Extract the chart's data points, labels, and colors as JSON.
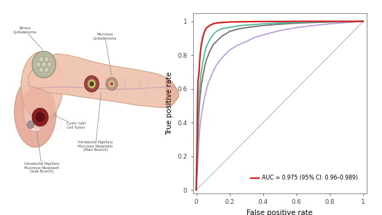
{
  "fig_width": 5.5,
  "fig_height": 3.09,
  "dpi": 100,
  "background_color": "#ffffff",
  "roc": {
    "diagonal_color": "#c0c0c0",
    "diagonal_lw": 0.9,
    "red_curve": {
      "x": [
        0,
        0.005,
        0.008,
        0.01,
        0.012,
        0.015,
        0.018,
        0.02,
        0.025,
        0.03,
        0.04,
        0.05,
        0.06,
        0.08,
        0.1,
        0.12,
        0.15,
        0.2,
        0.3,
        0.4,
        0.5,
        0.6,
        0.7,
        0.8,
        0.9,
        1.0
      ],
      "y": [
        0,
        0.3,
        0.55,
        0.63,
        0.66,
        0.68,
        0.72,
        0.76,
        0.82,
        0.86,
        0.91,
        0.94,
        0.96,
        0.975,
        0.985,
        0.99,
        0.993,
        0.996,
        0.998,
        0.999,
        0.999,
        1.0,
        1.0,
        1.0,
        1.0,
        1.0
      ],
      "color": "#d42020",
      "lw": 1.6
    },
    "teal_curve": {
      "x": [
        0,
        0.005,
        0.01,
        0.015,
        0.02,
        0.03,
        0.04,
        0.05,
        0.06,
        0.08,
        0.1,
        0.12,
        0.15,
        0.2,
        0.25,
        0.3,
        0.4,
        0.5,
        0.6,
        0.7,
        0.8,
        0.9,
        1.0
      ],
      "y": [
        0,
        0.2,
        0.4,
        0.52,
        0.6,
        0.7,
        0.76,
        0.81,
        0.85,
        0.89,
        0.92,
        0.94,
        0.955,
        0.965,
        0.973,
        0.978,
        0.985,
        0.99,
        0.993,
        0.996,
        0.998,
        0.999,
        1.0
      ],
      "color": "#4db8a0",
      "lw": 1.3
    },
    "gray_curve": {
      "x": [
        0,
        0.005,
        0.01,
        0.015,
        0.02,
        0.03,
        0.04,
        0.05,
        0.06,
        0.08,
        0.1,
        0.12,
        0.15,
        0.2,
        0.25,
        0.3,
        0.4,
        0.5,
        0.6,
        0.7,
        0.8,
        0.9,
        1.0
      ],
      "y": [
        0,
        0.15,
        0.3,
        0.43,
        0.52,
        0.62,
        0.68,
        0.73,
        0.77,
        0.82,
        0.86,
        0.88,
        0.91,
        0.94,
        0.955,
        0.963,
        0.975,
        0.983,
        0.989,
        0.993,
        0.996,
        0.998,
        1.0
      ],
      "color": "#707070",
      "lw": 1.3
    },
    "purple_curve": {
      "x": [
        0,
        0.005,
        0.01,
        0.015,
        0.02,
        0.03,
        0.05,
        0.07,
        0.1,
        0.12,
        0.15,
        0.2,
        0.25,
        0.3,
        0.35,
        0.4,
        0.5,
        0.6,
        0.7,
        0.8,
        0.9,
        1.0
      ],
      "y": [
        0,
        0.08,
        0.18,
        0.28,
        0.35,
        0.44,
        0.55,
        0.63,
        0.7,
        0.74,
        0.78,
        0.83,
        0.86,
        0.88,
        0.905,
        0.92,
        0.945,
        0.963,
        0.975,
        0.985,
        0.993,
        1.0
      ],
      "color": "#b8a0d8",
      "lw": 1.3
    },
    "xlabel": "False positive rate",
    "ylabel": "True positive rate",
    "xticks": [
      0,
      0.2,
      0.4,
      0.6,
      0.8,
      1.0
    ],
    "yticks": [
      0.0,
      0.2,
      0.4,
      0.6,
      0.8,
      1.0
    ],
    "xticklabels": [
      "0",
      "0.2",
      "0.4",
      "0.6",
      "0.8",
      "1"
    ],
    "yticklabels": [
      "0",
      "0.2",
      "0.4",
      "0.6",
      "0.8",
      "1"
    ],
    "legend_text": "AUC = 0.975 (95% CI: 0.96–0.989)",
    "legend_color": "#d42020",
    "axis_fontsize": 6.5,
    "label_fontsize": 7.5,
    "tick_color": "#444444",
    "spine_color": "#888888"
  }
}
